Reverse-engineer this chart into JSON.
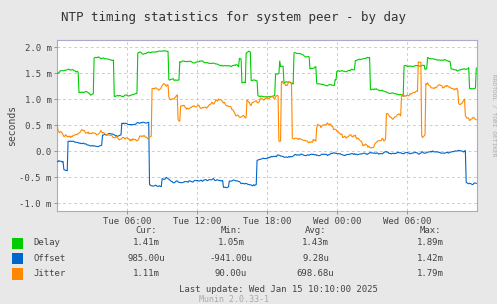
{
  "title": "NTP timing statistics for system peer - by day",
  "ylabel": "seconds",
  "right_label": "RRDTOOL / TOBI OETIKER",
  "background_color": "#e8e8e8",
  "plot_bg_color": "#ffffff",
  "ylim": [
    -1.15,
    2.15
  ],
  "yticks": [
    -1.0,
    -0.5,
    0.0,
    0.5,
    1.0,
    1.5,
    2.0
  ],
  "ytick_labels": [
    "-1.0 m",
    "-0.5 m",
    "0.0",
    "0.5 m",
    "1.0 m",
    "1.5 m",
    "2.0 m"
  ],
  "xtick_labels": [
    "Tue 06:00",
    "Tue 12:00",
    "Tue 18:00",
    "Wed 00:00",
    "Wed 06:00"
  ],
  "delay_color": "#00cc00",
  "offset_color": "#0066cc",
  "jitter_color": "#ff8800",
  "footer_munin": "Munin 2.0.33-1",
  "last_update": "Last update: Wed Jan 15 10:10:00 2025",
  "legend_header": [
    "Cur:",
    "Min:",
    "Avg:",
    "Max:"
  ],
  "legend_items": [
    {
      "name": "Delay",
      "color": "#00cc00",
      "cur": "1.41m",
      "min": "1.05m",
      "avg": "1.43m",
      "max": "1.89m"
    },
    {
      "name": "Offset",
      "color": "#0066cc",
      "cur": "985.00u",
      "min": "-941.00u",
      "avg": "9.28u",
      "max": "1.42m"
    },
    {
      "name": "Jitter",
      "color": "#ff8800",
      "cur": "1.11m",
      "min": "90.00u",
      "avg": "698.68u",
      "max": "1.79m"
    }
  ]
}
